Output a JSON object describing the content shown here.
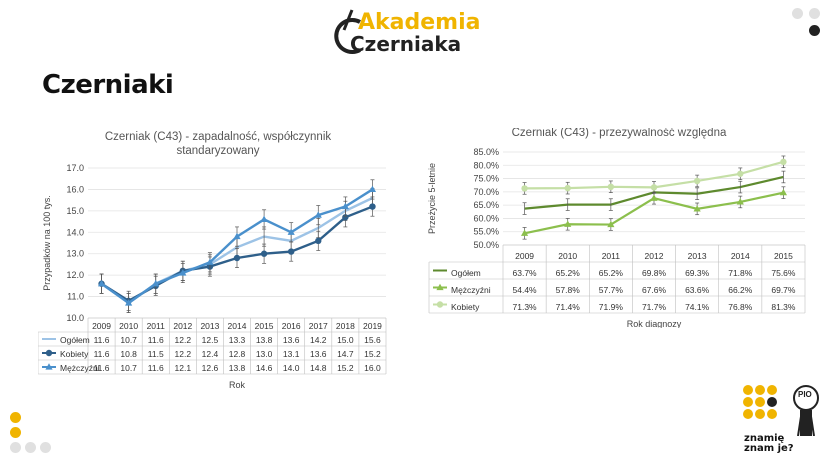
{
  "brand": {
    "line1": "Akademia",
    "line2": "Czerniaka"
  },
  "page": {
    "title": "Czerniaki"
  },
  "brand2": {
    "line1": "znamię",
    "line2": "znam je?",
    "badge": "PIO"
  },
  "colors": {
    "accent": "#f0b400",
    "dark": "#222222",
    "light": "#e0e0e0"
  },
  "chart_data": [
    {
      "type": "line",
      "title": "Czerniak (C43) - zapadalność, współczynnik standaryzowany",
      "title_lines": [
        "Czerniak (C43) - zapadalność, współczynnik",
        "standaryzowany"
      ],
      "xlabel": "Rok",
      "ylabel": "Przypadków na 100 tys.",
      "ylim": [
        10.0,
        17.0
      ],
      "yticks": [
        "10.0",
        "11.0",
        "12.0",
        "13.0",
        "14.0",
        "15.0",
        "16.0",
        "17.0"
      ],
      "categories": [
        "2009",
        "2010",
        "2011",
        "2012",
        "2013",
        "2014",
        "2015",
        "2016",
        "2017",
        "2018",
        "2019"
      ],
      "legend": "table",
      "series": [
        {
          "name": "Ogółem",
          "color": "#9dc3e6",
          "marker": "none",
          "values": [
            11.6,
            10.7,
            11.6,
            12.2,
            12.5,
            13.3,
            13.8,
            13.6,
            14.2,
            15.0,
            15.6
          ]
        },
        {
          "name": "Kobiety",
          "color": "#2e5f8a",
          "marker": "circle",
          "values": [
            11.6,
            10.8,
            11.5,
            12.2,
            12.4,
            12.8,
            13.0,
            13.1,
            13.6,
            14.7,
            15.2
          ]
        },
        {
          "name": "Mężczyźni",
          "color": "#4a90cc",
          "marker": "triangle",
          "values": [
            11.6,
            10.7,
            11.6,
            12.1,
            12.6,
            13.8,
            14.6,
            14.0,
            14.8,
            15.2,
            16.0
          ]
        }
      ],
      "table_values": [
        [
          "11.6",
          "10.7",
          "11.6",
          "12.2",
          "12.5",
          "13.3",
          "13.8",
          "13.6",
          "14.2",
          "15.0",
          "15.6"
        ],
        [
          "11.6",
          "10.8",
          "11.5",
          "12.2",
          "12.4",
          "12.8",
          "13.0",
          "13.1",
          "13.6",
          "14.7",
          "15.2"
        ],
        [
          "11.6",
          "10.7",
          "11.6",
          "12.1",
          "12.6",
          "13.8",
          "14.6",
          "14.0",
          "14.8",
          "15.2",
          "16.0"
        ]
      ]
    },
    {
      "type": "line",
      "title": "Czerniak (C43) - przeżywalność względna",
      "xlabel": "Rok diagnozy",
      "ylabel": "Przeżycie 5-letnie",
      "ylim": [
        50.0,
        85.0
      ],
      "yticks": [
        "50.0%",
        "55.0%",
        "60.0%",
        "65.0%",
        "70.0%",
        "75.0%",
        "80.0%",
        "85.0%"
      ],
      "categories": [
        "2009",
        "2010",
        "2011",
        "2012",
        "2013",
        "2014",
        "2015"
      ],
      "legend": "table",
      "series": [
        {
          "name": "Ogółem",
          "color": "#5e8a2e",
          "marker": "none",
          "values": [
            63.7,
            65.2,
            65.2,
            69.8,
            69.3,
            71.8,
            75.6
          ]
        },
        {
          "name": "Mężczyźni",
          "color": "#8cbf4d",
          "marker": "triangle",
          "values": [
            54.4,
            57.8,
            57.7,
            67.6,
            63.6,
            66.2,
            69.7
          ]
        },
        {
          "name": "Kobiety",
          "color": "#c5dfa6",
          "marker": "circle",
          "values": [
            71.3,
            71.4,
            71.9,
            71.7,
            74.1,
            76.8,
            81.3
          ]
        }
      ],
      "table_values": [
        [
          "63.7%",
          "65.2%",
          "65.2%",
          "69.8%",
          "69.3%",
          "71.8%",
          "75.6%"
        ],
        [
          "54.4%",
          "57.8%",
          "57.7%",
          "67.6%",
          "63.6%",
          "66.2%",
          "69.7%"
        ],
        [
          "71.3%",
          "71.4%",
          "71.9%",
          "71.7%",
          "74.1%",
          "76.8%",
          "81.3%"
        ]
      ]
    }
  ]
}
